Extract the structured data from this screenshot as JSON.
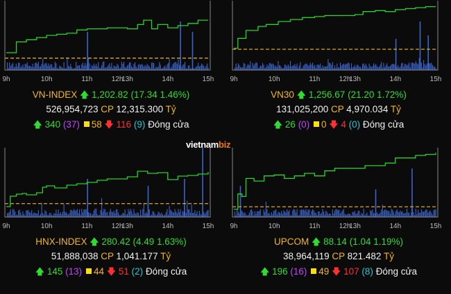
{
  "brand": {
    "main": "vietnam",
    "accent": "biz"
  },
  "colors": {
    "price_line": "#27d427",
    "reference_line": "#f3b81b",
    "volume_bar": "#3b63c8",
    "frame": "#8a8a8a",
    "up": "#2fdc2f",
    "down": "#ff3030",
    "ceiling": "#c044ff",
    "floor": "#23c8d6",
    "unchanged": "#ffe000"
  },
  "panels": [
    {
      "name": "VN-INDEX",
      "value": "1,202.82",
      "change": "(17.34 1.46%)",
      "volume": "526,954,723",
      "cp_label": "CP",
      "turnover": "12,315.300",
      "currency": "Tỷ",
      "advancers": "340",
      "ceiling": "(37)",
      "unchanged": "58",
      "decliners": "116",
      "floor": "(9)",
      "status": "Đóng cửa"
    },
    {
      "name": "VN30",
      "value": "1,256.67",
      "change": "(21.20 1.72%)",
      "volume": "131,025,200",
      "cp_label": "CP",
      "turnover": "4,970.034",
      "currency": "Tỷ",
      "advancers": "26",
      "ceiling": "(0)",
      "unchanged": "0",
      "decliners": "4",
      "floor": "(0)",
      "status": "Đóng cửa"
    },
    {
      "name": "HNX-INDEX",
      "value": "280.42",
      "change": "(4.49 1.63%)",
      "volume": "51,888,038",
      "cp_label": "CP",
      "turnover": "1,041.177",
      "currency": "Tỷ",
      "advancers": "145",
      "ceiling": "(13)",
      "unchanged": "44",
      "decliners": "51",
      "floor": "(2)",
      "status": "Đóng cửa"
    },
    {
      "name": "UPCOM",
      "value": "88.14",
      "change": "(1.04 1.19%)",
      "volume": "38,964,119",
      "cp_label": "CP",
      "turnover": "821.482",
      "currency": "Tỷ",
      "advancers": "196",
      "ceiling": "(16)",
      "unchanged": "49",
      "decliners": "107",
      "floor": "(8)",
      "status": "Đóng cửa"
    }
  ],
  "chart_data": [
    {
      "type": "line",
      "title": "VN-INDEX",
      "x_ticks": [
        "9h",
        "10h",
        "11h",
        "12h",
        "13h",
        "14h",
        "15h"
      ],
      "x": [
        9.0,
        9.25,
        9.5,
        9.75,
        10.0,
        10.25,
        10.5,
        10.75,
        11.0,
        11.25,
        11.5,
        13.0,
        13.25,
        13.4,
        13.6,
        13.75,
        14.0,
        14.25,
        14.5,
        14.75,
        15.0
      ],
      "values": [
        1188,
        1193,
        1194,
        1195,
        1196,
        1196.5,
        1197,
        1198.5,
        1199,
        1199,
        1199.5,
        1199,
        1201,
        1203,
        1199,
        1201,
        1199.5,
        1200.5,
        1201.5,
        1203,
        1203
      ],
      "reference": 1185.48,
      "ylim": [
        1180,
        1212
      ],
      "volume_spikes": [
        {
          "x": 11.0,
          "v": 0.55
        },
        {
          "x": 14.3,
          "v": 0.7
        },
        {
          "x": 14.6,
          "v": 0.55
        }
      ]
    },
    {
      "type": "line",
      "title": "VN30",
      "x_ticks": [
        "9h",
        "10h",
        "11h",
        "12h",
        "13h",
        "14h",
        "15h"
      ],
      "x": [
        9.0,
        9.1,
        9.3,
        9.6,
        9.8,
        10.1,
        10.4,
        10.7,
        11.0,
        11.25,
        11.5,
        13.0,
        13.2,
        13.5,
        13.75,
        14.0,
        14.25,
        14.5,
        14.75,
        15.0
      ],
      "values": [
        1236,
        1241,
        1245,
        1247,
        1248,
        1249.5,
        1250.5,
        1251.5,
        1252,
        1252.5,
        1252.5,
        1253,
        1254.5,
        1255,
        1254.5,
        1255.5,
        1256,
        1256.5,
        1257,
        1257
      ],
      "reference": 1235.47,
      "ylim": [
        1225,
        1260
      ],
      "volume_spikes": [
        {
          "x": 14.0,
          "v": 0.45
        },
        {
          "x": 14.6,
          "v": 0.7
        },
        {
          "x": 14.8,
          "v": 0.5
        }
      ]
    },
    {
      "type": "line",
      "title": "HNX-INDEX",
      "x_ticks": [
        "9h",
        "10h",
        "11h",
        "12h",
        "13h",
        "14h",
        "15h"
      ],
      "x": [
        9.0,
        9.1,
        9.25,
        9.4,
        9.5,
        9.75,
        9.9,
        10.0,
        10.2,
        10.5,
        10.75,
        11.0,
        11.25,
        11.5,
        13.0,
        13.25,
        13.5,
        13.75,
        14.0,
        14.25,
        14.5,
        14.75,
        15.0
      ],
      "values": [
        275.5,
        277,
        277.3,
        277.4,
        277.2,
        277.5,
        278.3,
        278.5,
        278.2,
        278.6,
        278.8,
        279,
        279.3,
        279.5,
        279.8,
        280.6,
        280.3,
        280.4,
        279.4,
        279.9,
        280,
        280.2,
        280.5
      ],
      "reference": 275.93,
      "ylim": [
        274,
        284
      ],
      "volume_spikes": [
        {
          "x": 11.0,
          "v": 0.55
        },
        {
          "x": 13.5,
          "v": 0.45
        },
        {
          "x": 14.4,
          "v": 0.55
        },
        {
          "x": 14.85,
          "v": 1.0
        }
      ]
    },
    {
      "type": "line",
      "title": "UPCOM",
      "x_ticks": [
        "9h",
        "10h",
        "11h",
        "12h",
        "13h",
        "14h",
        "15h"
      ],
      "x": [
        9.0,
        9.1,
        9.2,
        9.3,
        9.5,
        9.75,
        10.0,
        10.25,
        10.5,
        10.75,
        11.0,
        11.25,
        11.5,
        13.0,
        13.25,
        13.5,
        13.75,
        14.0,
        14.25,
        14.5,
        14.75,
        15.0
      ],
      "values": [
        87.05,
        87.35,
        87.3,
        87.65,
        87.6,
        87.7,
        87.72,
        87.65,
        87.7,
        87.75,
        87.7,
        87.8,
        87.85,
        87.85,
        87.9,
        87.9,
        87.95,
        88.05,
        88.05,
        88.1,
        88.12,
        88.15
      ],
      "reference": 87.1,
      "ylim": [
        86.9,
        88.25
      ],
      "volume_spikes": [
        {
          "x": 9.15,
          "v": 0.45
        },
        {
          "x": 13.5,
          "v": 0.4
        },
        {
          "x": 14.4,
          "v": 0.7
        }
      ]
    }
  ]
}
